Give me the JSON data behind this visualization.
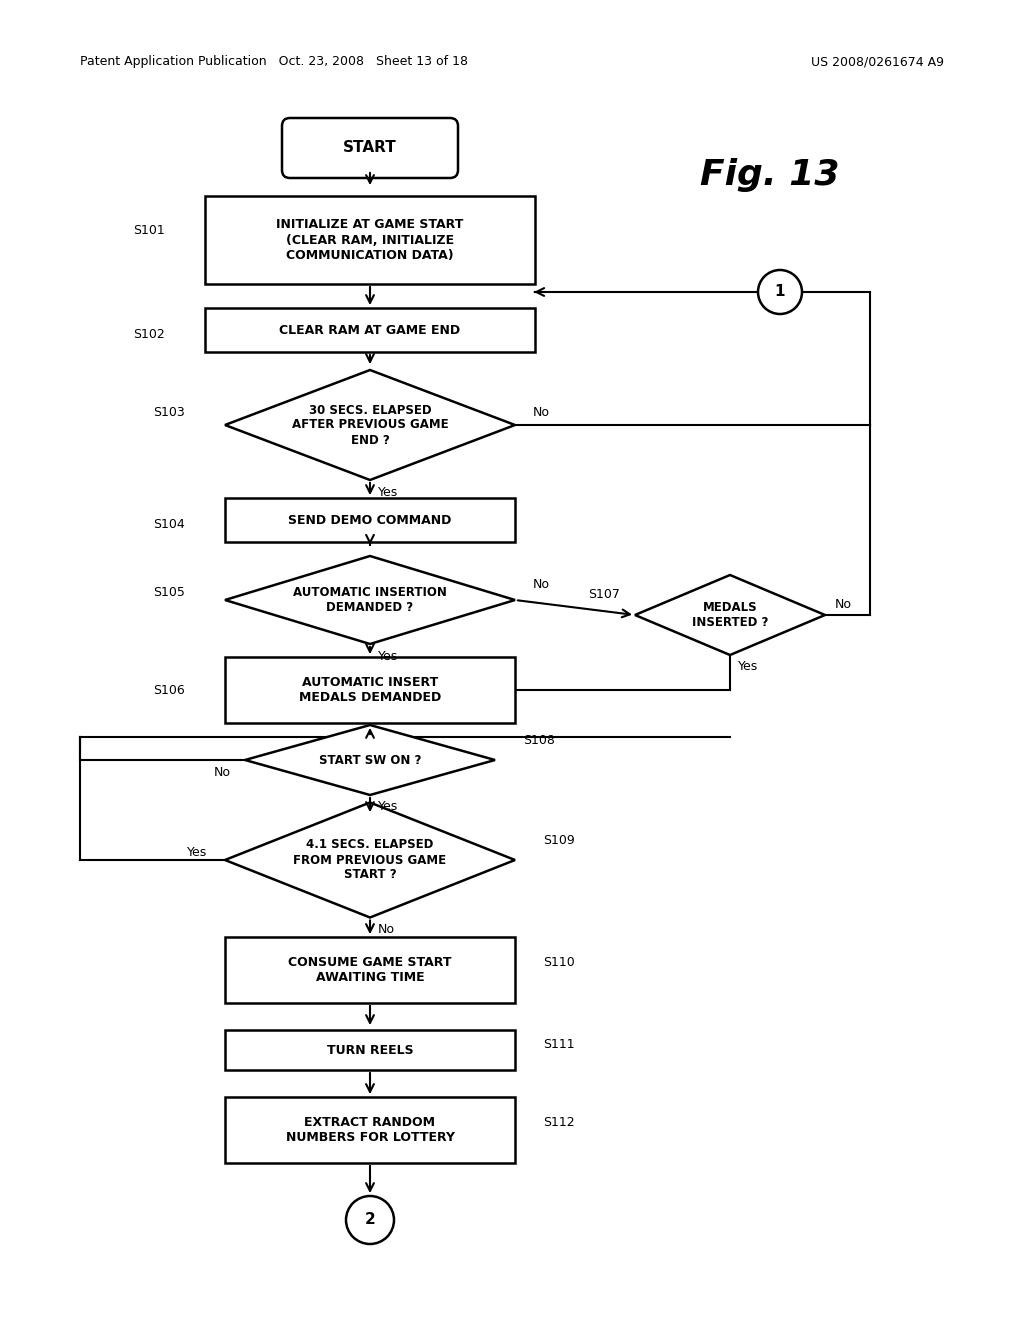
{
  "bg_color": "#ffffff",
  "header_left": "Patent Application Publication   Oct. 23, 2008   Sheet 13 of 18",
  "header_right": "US 2008/0261674 A9",
  "fig_label": "Fig. 13",
  "nodes": [
    {
      "id": "start",
      "type": "terminal",
      "text": "START"
    },
    {
      "id": "s101",
      "type": "process",
      "text": "INITIALIZE AT GAME START\n(CLEAR RAM, INITIALIZE\nCOMMUNICATION DATA)",
      "label": "S101"
    },
    {
      "id": "s102",
      "type": "process",
      "text": "CLEAR RAM AT GAME END",
      "label": "S102"
    },
    {
      "id": "s103",
      "type": "decision",
      "text": "30 SECS. ELAPSED\nAFTER PREVIOUS GAME\nEND ?",
      "label": "S103"
    },
    {
      "id": "s104",
      "type": "process",
      "text": "SEND DEMO COMMAND",
      "label": "S104"
    },
    {
      "id": "s105",
      "type": "decision",
      "text": "AUTOMATIC INSERTION\nDEMANDED ?",
      "label": "S105"
    },
    {
      "id": "s107",
      "type": "decision",
      "text": "MEDALS\nINSERTED ?",
      "label": "S107"
    },
    {
      "id": "s106",
      "type": "process",
      "text": "AUTOMATIC INSERT\nMEDALS DEMANDED",
      "label": "S106"
    },
    {
      "id": "s108",
      "type": "decision",
      "text": "START SW ON ?",
      "label": "S108"
    },
    {
      "id": "s109",
      "type": "decision",
      "text": "4.1 SECS. ELAPSED\nFROM PREVIOUS GAME\nSTART ?",
      "label": "S109"
    },
    {
      "id": "s110",
      "type": "process",
      "text": "CONSUME GAME START\nAWAITING TIME",
      "label": "S110"
    },
    {
      "id": "s111",
      "type": "process",
      "text": "TURN REELS",
      "label": "S111"
    },
    {
      "id": "s112",
      "type": "process",
      "text": "EXTRACT RANDOM\nNUMBERS FOR LOTTERY",
      "label": "S112"
    },
    {
      "id": "end2",
      "type": "connector",
      "text": "2"
    }
  ]
}
